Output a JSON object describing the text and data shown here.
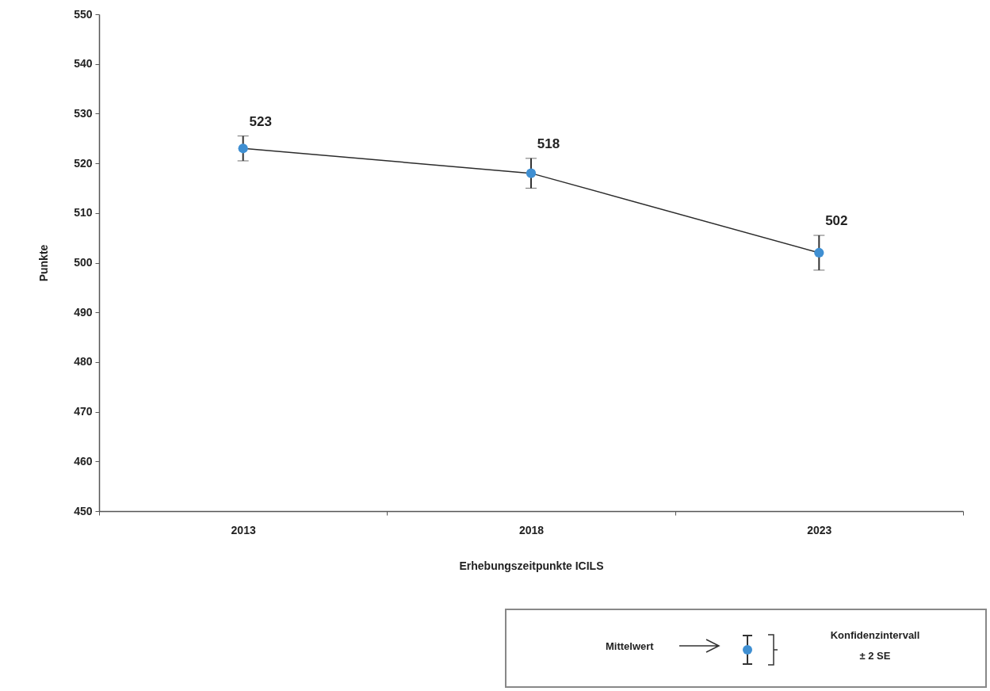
{
  "chart_data": {
    "type": "line",
    "xlabel": "Erhebungszeitpunkte ICILS",
    "ylabel": "Punkte",
    "categories": [
      "2013",
      "2018",
      "2023"
    ],
    "series": [
      {
        "color": "#3f8fd2",
        "values": [
          523,
          518,
          502
        ],
        "errors": [
          2.5,
          3,
          3.5
        ]
      }
    ],
    "ylim": [
      450,
      550
    ],
    "yticks": [
      450,
      460,
      470,
      480,
      490,
      500,
      510,
      520,
      530,
      540,
      550
    ],
    "data_labels": true,
    "grid": false,
    "marker": "circle",
    "line_style": "solid",
    "annotations": [
      "Mittelwert",
      "Konfidenzintervall",
      "± 2 SE"
    ]
  }
}
